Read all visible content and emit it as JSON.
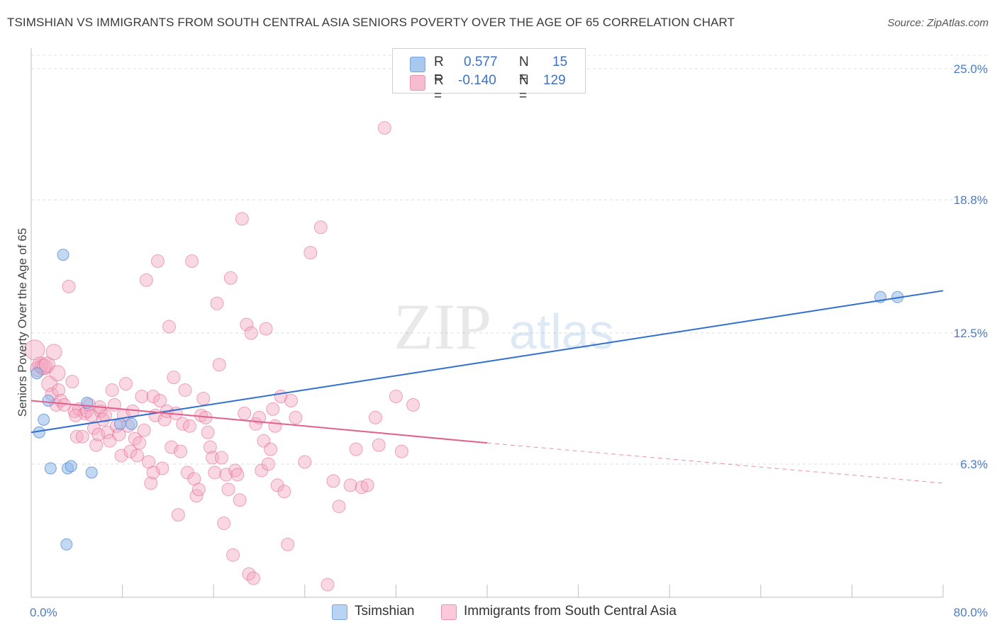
{
  "title": "TSIMSHIAN VS IMMIGRANTS FROM SOUTH CENTRAL ASIA SENIORS POVERTY OVER THE AGE OF 65 CORRELATION CHART",
  "source": "Source: ZipAtlas.com",
  "watermark": {
    "zip": "ZIP",
    "atlas": "atlas"
  },
  "legend": {
    "rows": [
      {
        "r_label": "R =",
        "r_value": "0.577",
        "n_label": "N =",
        "n_value": "15",
        "color": "#a9c8f0",
        "border": "#7aa6dc"
      },
      {
        "r_label": "R =",
        "r_value": "-0.140",
        "n_label": "N =",
        "n_value": "129",
        "color": "#f7bcd0",
        "border": "#e892b0"
      }
    ]
  },
  "bottom_legend": [
    {
      "label": "Tsimshian",
      "color": "#b8d3f3",
      "border": "#7aa6dc"
    },
    {
      "label": "Immigrants from South Central Asia",
      "color": "#fbc9d9",
      "border": "#e892b0"
    }
  ],
  "chart_data": {
    "type": "scatter",
    "title": "TSIMSHIAN VS IMMIGRANTS FROM SOUTH CENTRAL ASIA SENIORS POVERTY OVER THE AGE OF 65 CORRELATION CHART",
    "xlabel": "",
    "ylabel": "Seniors Poverty Over the Age of 65",
    "xlim": [
      0,
      80
    ],
    "ylim": [
      0,
      26
    ],
    "x_tick_labels": [
      "0.0%",
      "80.0%"
    ],
    "y_ticks": [
      6.3,
      12.5,
      18.8,
      25.0
    ],
    "y_tick_labels": [
      "6.3%",
      "12.5%",
      "18.8%",
      "25.0%"
    ],
    "grid": true,
    "colors": {
      "tsimshian": "#8fb8ea",
      "tsimshian_line": "#2f6fce",
      "immigrants": "#f4a9c2",
      "immigrants_line": "#e0608e"
    },
    "series": [
      {
        "name": "Tsimshian",
        "points": [
          [
            0.5,
            10.6
          ],
          [
            0.7,
            7.8
          ],
          [
            1.1,
            8.4
          ],
          [
            1.5,
            9.3
          ],
          [
            1.7,
            6.1
          ],
          [
            2.8,
            16.2
          ],
          [
            3.1,
            2.5
          ],
          [
            3.2,
            6.1
          ],
          [
            3.5,
            6.2
          ],
          [
            4.9,
            9.2
          ],
          [
            5.3,
            5.9
          ],
          [
            7.8,
            8.2
          ],
          [
            8.8,
            8.2
          ],
          [
            74.5,
            14.2
          ],
          [
            76.0,
            14.2
          ]
        ],
        "trend": {
          "x0": 0,
          "y0": 7.8,
          "x1": 80,
          "y1": 14.5
        }
      },
      {
        "name": "Immigrants from South Central Asia",
        "points": [
          [
            0.3,
            11.7
          ],
          [
            0.6,
            10.8
          ],
          [
            0.8,
            11.0
          ],
          [
            1.0,
            10.9
          ],
          [
            1.2,
            10.9
          ],
          [
            1.4,
            11.0
          ],
          [
            1.6,
            10.1
          ],
          [
            1.8,
            9.6
          ],
          [
            2.0,
            11.6
          ],
          [
            2.2,
            9.1
          ],
          [
            2.4,
            9.8
          ],
          [
            2.6,
            9.3
          ],
          [
            2.9,
            9.1
          ],
          [
            3.3,
            14.7
          ],
          [
            3.6,
            10.2
          ],
          [
            3.8,
            8.8
          ],
          [
            4.0,
            7.6
          ],
          [
            4.2,
            8.9
          ],
          [
            4.5,
            7.6
          ],
          [
            4.7,
            8.7
          ],
          [
            4.9,
            8.8
          ],
          [
            5.1,
            9.1
          ],
          [
            5.3,
            8.6
          ],
          [
            5.5,
            8.0
          ],
          [
            5.7,
            7.2
          ],
          [
            5.9,
            7.7
          ],
          [
            6.1,
            8.8
          ],
          [
            6.3,
            8.4
          ],
          [
            6.5,
            8.6
          ],
          [
            6.7,
            7.8
          ],
          [
            6.9,
            7.4
          ],
          [
            7.1,
            9.8
          ],
          [
            7.3,
            9.1
          ],
          [
            7.5,
            8.1
          ],
          [
            7.7,
            7.7
          ],
          [
            7.9,
            6.7
          ],
          [
            8.1,
            8.6
          ],
          [
            8.3,
            10.1
          ],
          [
            8.5,
            8.1
          ],
          [
            8.7,
            6.9
          ],
          [
            8.9,
            8.8
          ],
          [
            9.1,
            7.5
          ],
          [
            9.3,
            6.7
          ],
          [
            9.5,
            7.3
          ],
          [
            9.7,
            9.5
          ],
          [
            9.9,
            7.9
          ],
          [
            10.1,
            15.0
          ],
          [
            10.3,
            6.4
          ],
          [
            10.5,
            5.4
          ],
          [
            10.7,
            9.5
          ],
          [
            10.9,
            8.6
          ],
          [
            11.1,
            15.9
          ],
          [
            11.3,
            9.3
          ],
          [
            11.5,
            6.1
          ],
          [
            11.7,
            8.4
          ],
          [
            11.9,
            8.8
          ],
          [
            12.1,
            12.8
          ],
          [
            12.3,
            7.1
          ],
          [
            12.5,
            10.4
          ],
          [
            12.7,
            8.7
          ],
          [
            12.9,
            3.9
          ],
          [
            13.1,
            6.9
          ],
          [
            13.3,
            8.2
          ],
          [
            13.5,
            9.8
          ],
          [
            13.7,
            5.9
          ],
          [
            13.9,
            8.1
          ],
          [
            14.1,
            15.9
          ],
          [
            14.3,
            5.6
          ],
          [
            14.5,
            4.8
          ],
          [
            14.7,
            5.1
          ],
          [
            14.9,
            8.6
          ],
          [
            15.1,
            9.4
          ],
          [
            15.3,
            8.5
          ],
          [
            15.5,
            7.8
          ],
          [
            15.7,
            7.1
          ],
          [
            15.9,
            6.6
          ],
          [
            16.1,
            5.9
          ],
          [
            16.3,
            13.9
          ],
          [
            16.5,
            11.0
          ],
          [
            16.7,
            6.6
          ],
          [
            16.9,
            3.5
          ],
          [
            17.1,
            5.8
          ],
          [
            17.3,
            5.1
          ],
          [
            17.5,
            15.1
          ],
          [
            17.7,
            2.0
          ],
          [
            17.9,
            6.0
          ],
          [
            18.1,
            5.8
          ],
          [
            18.3,
            4.6
          ],
          [
            18.5,
            17.9
          ],
          [
            18.7,
            8.7
          ],
          [
            18.9,
            12.9
          ],
          [
            19.1,
            1.1
          ],
          [
            19.3,
            12.5
          ],
          [
            19.5,
            0.9
          ],
          [
            19.7,
            8.2
          ],
          [
            20.0,
            8.5
          ],
          [
            20.2,
            6.0
          ],
          [
            20.4,
            7.4
          ],
          [
            20.6,
            12.7
          ],
          [
            20.8,
            6.3
          ],
          [
            21.0,
            7.0
          ],
          [
            21.2,
            8.9
          ],
          [
            21.4,
            8.1
          ],
          [
            21.6,
            5.3
          ],
          [
            21.9,
            9.5
          ],
          [
            22.2,
            5.0
          ],
          [
            22.5,
            2.5
          ],
          [
            22.8,
            9.3
          ],
          [
            23.2,
            8.5
          ],
          [
            24.0,
            6.4
          ],
          [
            24.5,
            16.3
          ],
          [
            25.4,
            17.5
          ],
          [
            26.0,
            0.6
          ],
          [
            26.5,
            5.5
          ],
          [
            27.0,
            4.3
          ],
          [
            28.0,
            5.3
          ],
          [
            28.5,
            7.0
          ],
          [
            29.0,
            5.2
          ],
          [
            29.5,
            5.3
          ],
          [
            30.2,
            8.5
          ],
          [
            30.5,
            7.2
          ],
          [
            31.0,
            22.2
          ],
          [
            32.0,
            9.5
          ],
          [
            32.5,
            6.9
          ],
          [
            33.5,
            9.1
          ],
          [
            10.7,
            5.9
          ],
          [
            6.0,
            9.0
          ],
          [
            3.9,
            8.6
          ],
          [
            2.3,
            10.6
          ]
        ],
        "trend": {
          "x0": 0,
          "y0": 9.3,
          "x1": 40,
          "y1": 7.3,
          "dashed_to_x": 80,
          "dashed_to_y": 5.4
        }
      }
    ]
  }
}
